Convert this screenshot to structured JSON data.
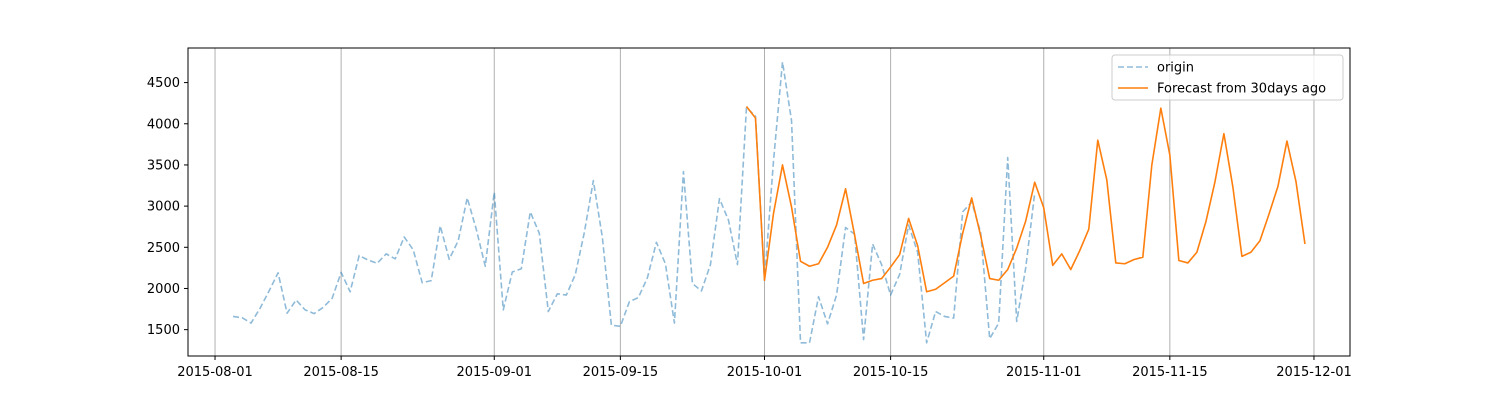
{
  "chart_data": {
    "type": "line",
    "title": "",
    "xlabel": "",
    "ylabel": "",
    "x_axis": {
      "type": "date",
      "range": [
        "2015-07-29",
        "2015-12-05"
      ],
      "ticks": [
        "2015-08-01",
        "2015-08-15",
        "2015-09-01",
        "2015-09-15",
        "2015-10-01",
        "2015-10-15",
        "2015-11-01",
        "2015-11-15",
        "2015-12-01"
      ],
      "grid": true
    },
    "y_axis": {
      "range": [
        1180,
        4920
      ],
      "ticks": [
        1500,
        2000,
        2500,
        3000,
        3500,
        4000,
        4500
      ],
      "grid": false
    },
    "legend": {
      "position": "top-right"
    },
    "series": [
      {
        "name": "origin",
        "style": "dashed",
        "color": "#1f77b4",
        "opacity": 0.5,
        "points": [
          [
            "2015-08-03",
            1660
          ],
          [
            "2015-08-04",
            1645
          ],
          [
            "2015-08-05",
            1580
          ],
          [
            "2015-08-06",
            1760
          ],
          [
            "2015-08-07",
            1970
          ],
          [
            "2015-08-08",
            2190
          ],
          [
            "2015-08-09",
            1700
          ],
          [
            "2015-08-10",
            1860
          ],
          [
            "2015-08-11",
            1740
          ],
          [
            "2015-08-12",
            1695
          ],
          [
            "2015-08-13",
            1770
          ],
          [
            "2015-08-14",
            1880
          ],
          [
            "2015-08-15",
            2195
          ],
          [
            "2015-08-16",
            1960
          ],
          [
            "2015-08-17",
            2400
          ],
          [
            "2015-08-18",
            2345
          ],
          [
            "2015-08-19",
            2305
          ],
          [
            "2015-08-20",
            2420
          ],
          [
            "2015-08-21",
            2360
          ],
          [
            "2015-08-22",
            2625
          ],
          [
            "2015-08-23",
            2470
          ],
          [
            "2015-08-24",
            2070
          ],
          [
            "2015-08-25",
            2095
          ],
          [
            "2015-08-26",
            2760
          ],
          [
            "2015-08-27",
            2355
          ],
          [
            "2015-08-28",
            2580
          ],
          [
            "2015-08-29",
            3100
          ],
          [
            "2015-08-30",
            2720
          ],
          [
            "2015-08-31",
            2270
          ],
          [
            "2015-09-01",
            3170
          ],
          [
            "2015-09-02",
            1740
          ],
          [
            "2015-09-03",
            2200
          ],
          [
            "2015-09-04",
            2240
          ],
          [
            "2015-09-05",
            2930
          ],
          [
            "2015-09-06",
            2670
          ],
          [
            "2015-09-07",
            1720
          ],
          [
            "2015-09-08",
            1935
          ],
          [
            "2015-09-09",
            1920
          ],
          [
            "2015-09-10",
            2170
          ],
          [
            "2015-09-11",
            2680
          ],
          [
            "2015-09-12",
            3310
          ],
          [
            "2015-09-13",
            2620
          ],
          [
            "2015-09-14",
            1555
          ],
          [
            "2015-09-15",
            1540
          ],
          [
            "2015-09-16",
            1840
          ],
          [
            "2015-09-17",
            1890
          ],
          [
            "2015-09-18",
            2130
          ],
          [
            "2015-09-19",
            2560
          ],
          [
            "2015-09-20",
            2300
          ],
          [
            "2015-09-21",
            1580
          ],
          [
            "2015-09-22",
            3420
          ],
          [
            "2015-09-23",
            2060
          ],
          [
            "2015-09-24",
            1970
          ],
          [
            "2015-09-25",
            2290
          ],
          [
            "2015-09-26",
            3090
          ],
          [
            "2015-09-27",
            2830
          ],
          [
            "2015-09-28",
            2290
          ],
          [
            "2015-09-29",
            4200
          ],
          [
            "2015-09-30",
            4090
          ],
          [
            "2015-10-01",
            2100
          ],
          [
            "2015-10-02",
            3550
          ],
          [
            "2015-10-03",
            4750
          ],
          [
            "2015-10-04",
            4040
          ],
          [
            "2015-10-05",
            1340
          ],
          [
            "2015-10-06",
            1340
          ],
          [
            "2015-10-07",
            1900
          ],
          [
            "2015-10-08",
            1570
          ],
          [
            "2015-10-09",
            1920
          ],
          [
            "2015-10-10",
            2740
          ],
          [
            "2015-10-11",
            2660
          ],
          [
            "2015-10-12",
            1380
          ],
          [
            "2015-10-13",
            2540
          ],
          [
            "2015-10-14",
            2290
          ],
          [
            "2015-10-15",
            1920
          ],
          [
            "2015-10-16",
            2170
          ],
          [
            "2015-10-17",
            2770
          ],
          [
            "2015-10-18",
            2440
          ],
          [
            "2015-10-19",
            1340
          ],
          [
            "2015-10-20",
            1720
          ],
          [
            "2015-10-21",
            1660
          ],
          [
            "2015-10-22",
            1640
          ],
          [
            "2015-10-23",
            2930
          ],
          [
            "2015-10-24",
            3050
          ],
          [
            "2015-10-25",
            2680
          ],
          [
            "2015-10-26",
            1390
          ],
          [
            "2015-10-27",
            1580
          ],
          [
            "2015-10-28",
            3590
          ],
          [
            "2015-10-29",
            1600
          ],
          [
            "2015-10-30",
            2250
          ],
          [
            "2015-10-31",
            3160
          ]
        ]
      },
      {
        "name": "Forecast from 30days ago",
        "style": "solid",
        "color": "#ff7f0e",
        "opacity": 1,
        "points": [
          [
            "2015-09-29",
            4210
          ],
          [
            "2015-09-30",
            4070
          ],
          [
            "2015-10-01",
            2100
          ],
          [
            "2015-10-02",
            2910
          ],
          [
            "2015-10-03",
            3500
          ],
          [
            "2015-10-04",
            2990
          ],
          [
            "2015-10-05",
            2330
          ],
          [
            "2015-10-06",
            2270
          ],
          [
            "2015-10-07",
            2300
          ],
          [
            "2015-10-08",
            2500
          ],
          [
            "2015-10-09",
            2770
          ],
          [
            "2015-10-10",
            3210
          ],
          [
            "2015-10-11",
            2650
          ],
          [
            "2015-10-12",
            2060
          ],
          [
            "2015-10-13",
            2100
          ],
          [
            "2015-10-14",
            2120
          ],
          [
            "2015-10-15",
            2260
          ],
          [
            "2015-10-16",
            2410
          ],
          [
            "2015-10-17",
            2850
          ],
          [
            "2015-10-18",
            2520
          ],
          [
            "2015-10-19",
            1960
          ],
          [
            "2015-10-20",
            1990
          ],
          [
            "2015-10-21",
            2070
          ],
          [
            "2015-10-22",
            2150
          ],
          [
            "2015-10-23",
            2670
          ],
          [
            "2015-10-24",
            3100
          ],
          [
            "2015-10-25",
            2640
          ],
          [
            "2015-10-26",
            2120
          ],
          [
            "2015-10-27",
            2100
          ],
          [
            "2015-10-28",
            2230
          ],
          [
            "2015-10-29",
            2490
          ],
          [
            "2015-10-30",
            2820
          ],
          [
            "2015-10-31",
            3290
          ],
          [
            "2015-11-01",
            2980
          ],
          [
            "2015-11-02",
            2280
          ],
          [
            "2015-11-03",
            2420
          ],
          [
            "2015-11-04",
            2230
          ],
          [
            "2015-11-05",
            2460
          ],
          [
            "2015-11-06",
            2720
          ],
          [
            "2015-11-07",
            3800
          ],
          [
            "2015-11-08",
            3320
          ],
          [
            "2015-11-09",
            2310
          ],
          [
            "2015-11-10",
            2300
          ],
          [
            "2015-11-11",
            2350
          ],
          [
            "2015-11-12",
            2380
          ],
          [
            "2015-11-13",
            3500
          ],
          [
            "2015-11-14",
            4190
          ],
          [
            "2015-11-15",
            3620
          ],
          [
            "2015-11-16",
            2340
          ],
          [
            "2015-11-17",
            2310
          ],
          [
            "2015-11-18",
            2440
          ],
          [
            "2015-11-19",
            2810
          ],
          [
            "2015-11-20",
            3290
          ],
          [
            "2015-11-21",
            3880
          ],
          [
            "2015-11-22",
            3230
          ],
          [
            "2015-11-23",
            2390
          ],
          [
            "2015-11-24",
            2440
          ],
          [
            "2015-11-25",
            2580
          ],
          [
            "2015-11-26",
            2900
          ],
          [
            "2015-11-27",
            3240
          ],
          [
            "2015-11-28",
            3790
          ],
          [
            "2015-11-29",
            3300
          ],
          [
            "2015-11-30",
            2540
          ]
        ]
      }
    ]
  }
}
